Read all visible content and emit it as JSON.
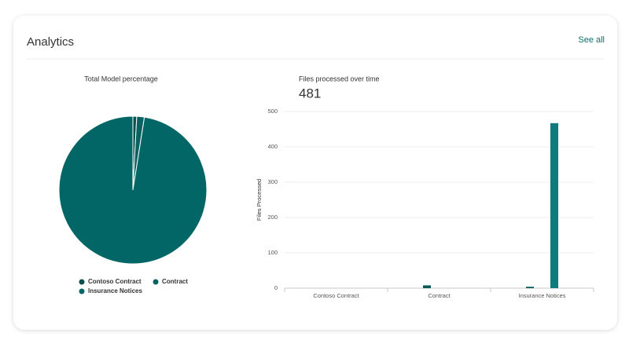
{
  "header": {
    "title": "Analytics",
    "link": "See all"
  },
  "chart_data": [
    {
      "type": "pie",
      "title": "Total Model percentage",
      "categories": [
        "Contoso Contract",
        "Contract",
        "Insurance Notices"
      ],
      "values": [
        4,
        8,
        469
      ],
      "colors": [
        "#0b4f4f",
        "#0a6161",
        "#036666"
      ]
    },
    {
      "type": "bar",
      "title": "Files processed over time",
      "total": 481,
      "y_label": "Files Processed",
      "categories": [
        "Contoso Contract",
        "Contract",
        "Insurance Notices"
      ],
      "series": [
        {
          "color": "#0b5a5a",
          "values": [
            0,
            8,
            4
          ]
        },
        {
          "color": "#0e7c7c",
          "values": [
            0,
            0,
            467
          ]
        }
      ],
      "ylim": [
        0,
        500
      ],
      "yticks": [
        0,
        100,
        200,
        300,
        400,
        500
      ],
      "grid": true
    }
  ]
}
